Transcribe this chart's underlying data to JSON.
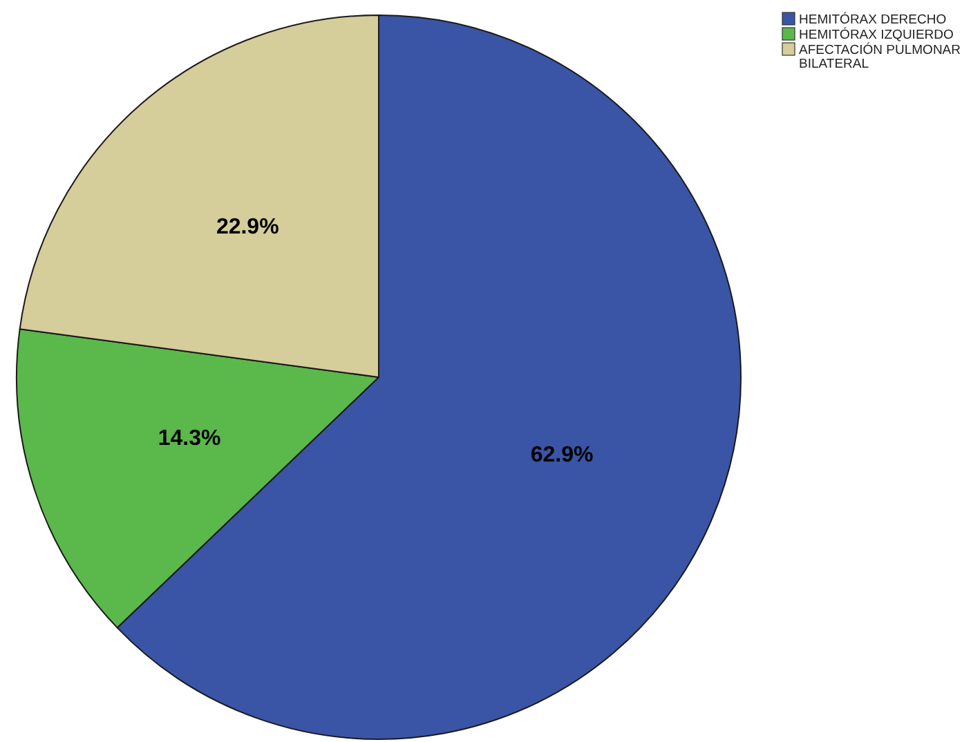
{
  "chart_data": {
    "type": "pie",
    "categories": [
      "HEMITÓRAX DERECHO",
      "HEMITÓRAX IZQUIERDO",
      "AFECTACIÓN PULMONAR BILATERAL"
    ],
    "values": [
      62.9,
      14.3,
      22.9
    ],
    "value_labels": [
      "62.9%",
      "14.3%",
      "22.9%"
    ],
    "colors": [
      "#3a54a6",
      "#5bb84b",
      "#d5cd9a"
    ],
    "legend": "top right"
  }
}
